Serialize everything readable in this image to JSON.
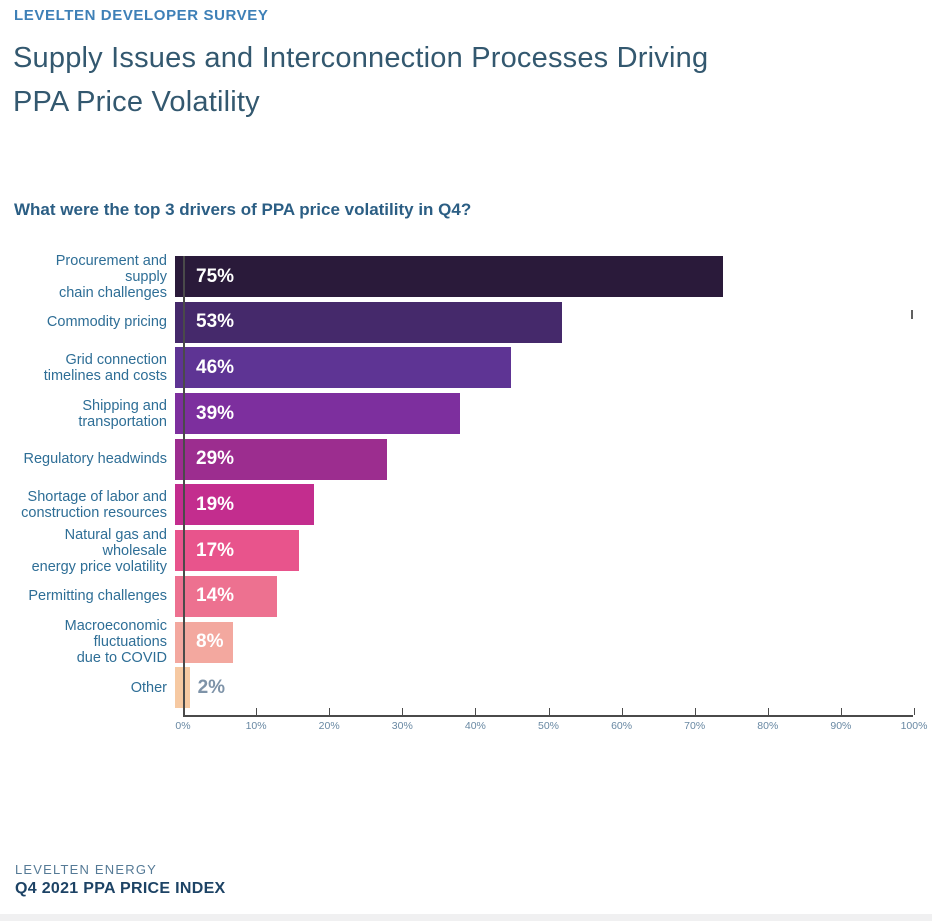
{
  "page": {
    "eyebrow": "LEVELTEN DEVELOPER SURVEY",
    "title": "Supply Issues and Interconnection Processes Driving\nPPA Price Volatility",
    "question": "What were the top 3 drivers of PPA price volatility in Q4?"
  },
  "footer": {
    "org": "LEVELTEN ENERGY",
    "report": "Q4 2021 PPA PRICE INDEX"
  },
  "colors": {
    "eyebrow": "#3e80b7",
    "title": "#33586f",
    "question": "#2b5e84",
    "category_label": "#2e6e96",
    "value_inside": "#ffffff",
    "value_outside": "#7e93a8",
    "axis_line": "#4a4a4a",
    "tick_label": "#6888a3",
    "footer_org": "#557a96",
    "footer_report": "#1d4365"
  },
  "chart_data": {
    "type": "bar",
    "orientation": "horizontal",
    "title": "What were the top 3 drivers of PPA price volatility in Q4?",
    "categories": [
      "Procurement and supply\nchain challenges",
      "Commodity pricing",
      "Grid connection\ntimelines and costs",
      "Shipping and\ntransportation",
      "Regulatory headwinds",
      "Shortage of labor and\nconstruction resources",
      "Natural gas and wholesale\nenergy price volatility",
      "Permitting challenges",
      "Macroeconomic\nfluctuations\ndue to COVID",
      "Other"
    ],
    "values": [
      75,
      53,
      46,
      39,
      29,
      19,
      17,
      14,
      8,
      2
    ],
    "value_labels": [
      "75%",
      "53%",
      "46%",
      "39%",
      "29%",
      "19%",
      "17%",
      "14%",
      "8%",
      "2%"
    ],
    "label_positions": [
      "inside",
      "inside",
      "inside",
      "inside",
      "inside",
      "inside",
      "inside",
      "inside",
      "inside",
      "outside"
    ],
    "bar_colors": [
      "#2a1a3a",
      "#45296b",
      "#5e3494",
      "#7d2f9e",
      "#9c2d8f",
      "#c32d8e",
      "#e8548c",
      "#ed7190",
      "#f3a89f",
      "#f6c9a2"
    ],
    "xlabel": "",
    "ylabel": "",
    "xlim": [
      0,
      100
    ],
    "x_ticks": [
      "0%",
      "10%",
      "20%",
      "30%",
      "40%",
      "50%",
      "60%",
      "70%",
      "80%",
      "90%",
      "100%"
    ],
    "grid": false,
    "legend": false
  }
}
